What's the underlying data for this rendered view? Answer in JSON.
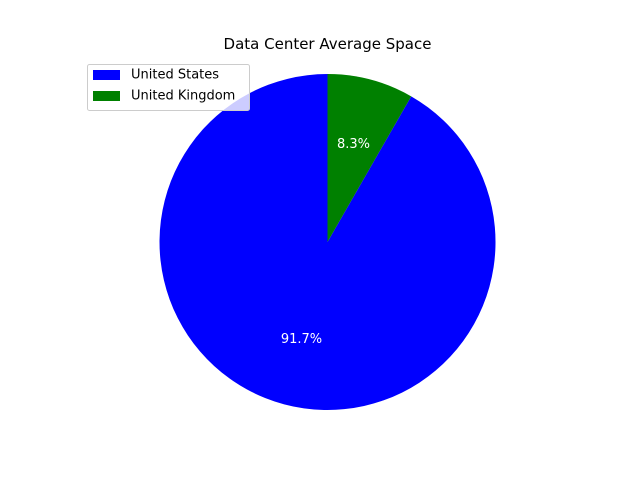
{
  "chart_data": {
    "type": "pie",
    "title": "Data Center Average Space",
    "categories": [
      "United States",
      "United Kingdom"
    ],
    "values": [
      91.7,
      8.3
    ],
    "value_labels": [
      "91.7%",
      "8.3%"
    ],
    "colors": [
      "#0000ff",
      "#008000"
    ],
    "start_angle_deg": 90,
    "direction": "counterclockwise",
    "legend_placement": "upper-left"
  }
}
